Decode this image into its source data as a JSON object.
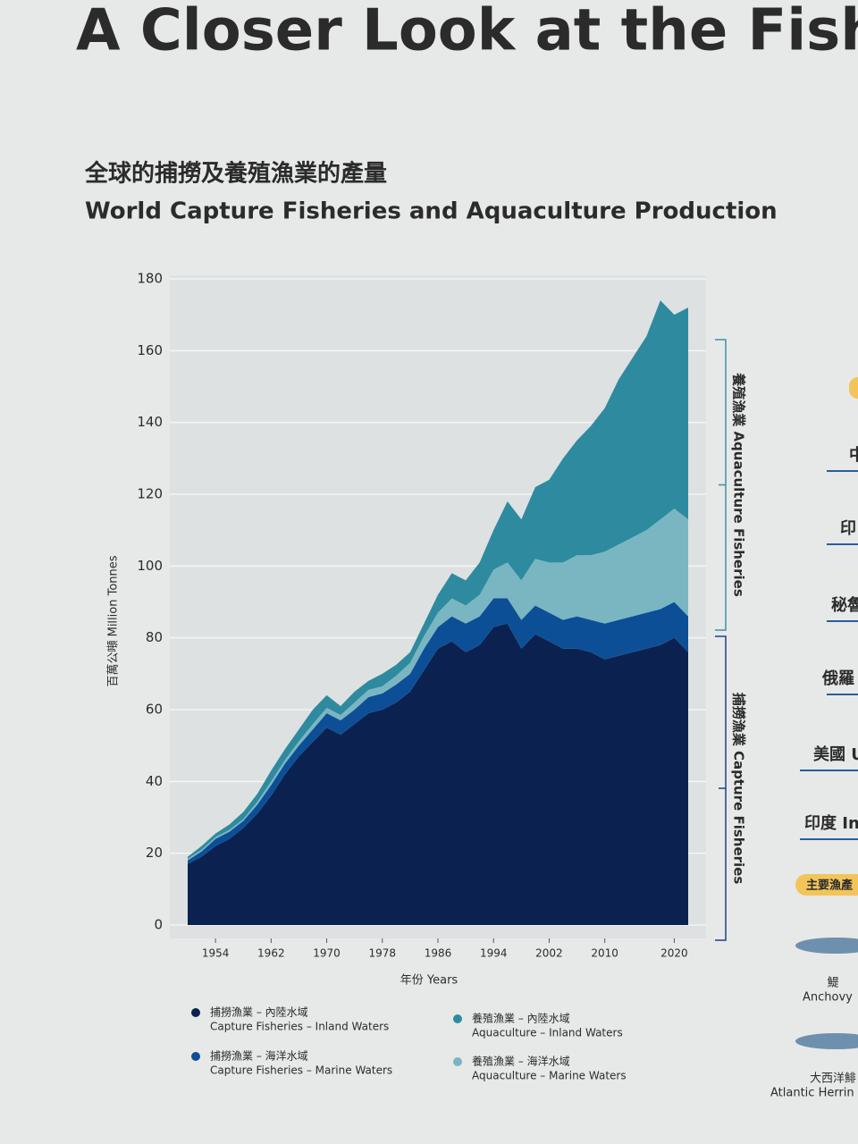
{
  "header": {
    "title": "A Closer Look at the Fishe"
  },
  "chart_data": {
    "type": "area",
    "stacked": true,
    "title": "全球的捕撈及養殖漁業的產量",
    "subtitle": "World Capture Fisheries and Aquaculture Production",
    "xlabel": "年份 Years",
    "ylabel": "百萬公噸 Million Tonnes",
    "x": [
      1950,
      1952,
      1954,
      1956,
      1958,
      1960,
      1962,
      1964,
      1966,
      1968,
      1970,
      1972,
      1974,
      1976,
      1978,
      1980,
      1982,
      1984,
      1986,
      1988,
      1990,
      1992,
      1994,
      1996,
      1998,
      2000,
      2002,
      2004,
      2006,
      2008,
      2010,
      2012,
      2014,
      2016,
      2018,
      2020,
      2022
    ],
    "xlim": [
      1950,
      2022
    ],
    "xticks": [
      1954,
      1962,
      1970,
      1978,
      1986,
      1994,
      2002,
      2010,
      2020
    ],
    "ylim": [
      0,
      180
    ],
    "yticks": [
      0,
      20,
      40,
      60,
      80,
      100,
      120,
      140,
      160,
      180
    ],
    "grid": true,
    "series": [
      {
        "name": "捕撈漁業 – 內陸水域",
        "name_en": "Capture Fisheries – Inland Waters",
        "color": "#0b2250",
        "values": [
          17,
          19,
          22,
          24,
          27,
          31,
          36,
          42,
          47,
          51,
          55,
          53,
          56,
          59,
          60,
          62,
          65,
          71,
          77,
          79,
          76,
          78,
          83,
          84,
          77,
          81,
          79,
          77,
          77,
          76,
          74,
          75,
          76,
          77,
          78,
          80,
          76
        ]
      },
      {
        "name": "捕撈漁業 – 海洋水域",
        "name_en": "Capture Fisheries – Marine Waters",
        "color": "#0d4f96",
        "values": [
          1,
          1.5,
          2,
          2,
          2,
          2.5,
          3,
          3,
          3,
          3.5,
          4,
          4,
          4,
          4.5,
          4.5,
          5,
          5,
          6,
          6,
          7,
          8,
          8,
          8,
          7,
          8,
          8,
          8,
          8,
          9,
          9,
          10,
          10,
          10,
          10,
          10,
          10,
          10
        ]
      },
      {
        "name": "養殖漁業 – 海洋水域",
        "name_en": "Aquaculture – Marine Waters",
        "color": "#7ab6c2",
        "values": [
          0.5,
          0.5,
          0.5,
          0.5,
          0.5,
          0.8,
          1,
          1,
          1.2,
          1.5,
          1.5,
          1.5,
          2,
          2,
          2,
          2.5,
          3,
          3.5,
          4,
          5,
          5,
          6,
          8,
          10,
          11,
          13,
          14,
          16,
          17,
          18,
          20,
          21,
          22,
          23,
          25,
          26,
          27
        ]
      },
      {
        "name": "養殖漁業 – 內陸水域",
        "name_en": "Aquaculture – Inland Waters",
        "color": "#2e8a9f",
        "values": [
          0.5,
          1,
          1,
          1.5,
          2,
          2.2,
          3,
          3,
          3.3,
          4,
          3.5,
          2.5,
          3,
          2.5,
          3.5,
          3,
          3,
          3.5,
          5,
          7,
          7,
          9,
          11,
          17,
          17,
          20,
          23,
          29,
          32,
          36,
          40,
          46,
          50,
          54,
          61,
          54,
          59
        ]
      }
    ],
    "annotations": [
      {
        "text": "養殖漁業 Aquaculture Fisheries"
      },
      {
        "text": "捕撈漁業 Capture Fisheries"
      }
    ]
  },
  "side_panel": {
    "items": [
      "中",
      "印",
      "秘魯",
      "俄羅",
      "美國 U",
      "印度 In"
    ],
    "badge": "主要漁產",
    "fish": [
      {
        "zh": "鯷",
        "en": "Anchovy"
      },
      {
        "zh": "大西洋鯡",
        "en": "Atlantic Herrin"
      }
    ]
  }
}
